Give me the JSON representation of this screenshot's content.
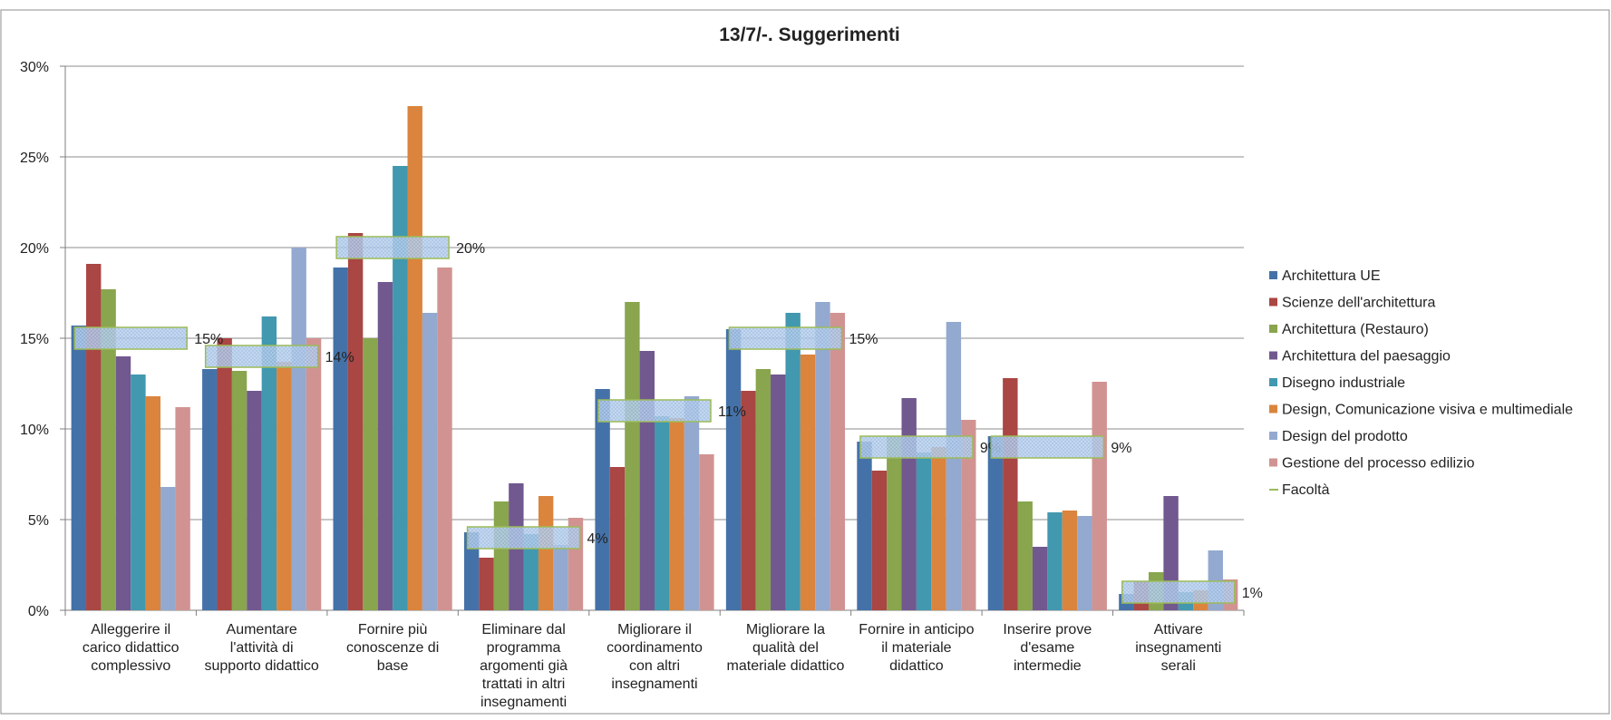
{
  "chart_data": {
    "type": "bar",
    "title": "13/7/-. Suggerimenti",
    "xlabel": "",
    "ylabel": "",
    "ylim": [
      0,
      30
    ],
    "yticks": [
      "0%",
      "5%",
      "10%",
      "15%",
      "20%",
      "25%",
      "30%"
    ],
    "grid": true,
    "legend_position": "right",
    "categories": [
      [
        "Alleggerire il",
        "carico didattico",
        "complessivo"
      ],
      [
        "Aumentare",
        "l'attività di",
        "supporto didattico"
      ],
      [
        "Fornire più",
        "conoscenze di",
        "base"
      ],
      [
        "Eliminare dal",
        "programma",
        "argomenti già",
        "trattati in altri",
        "insegnamenti"
      ],
      [
        "Migliorare il",
        "coordinamento",
        "con altri",
        "insegnamenti"
      ],
      [
        "Migliorare la",
        "qualità del",
        "materiale didattico"
      ],
      [
        "Fornire in anticipo",
        "il materiale",
        "didattico"
      ],
      [
        "Inserire prove",
        "d'esame",
        "intermedie"
      ],
      [
        "Attivare",
        "insegnamenti",
        "serali"
      ]
    ],
    "series": [
      {
        "name": "Architettura UE",
        "color": "#4472A8",
        "values": [
          15.7,
          13.3,
          18.9,
          4.3,
          12.2,
          15.5,
          9.3,
          9.6,
          0.9
        ]
      },
      {
        "name": "Scienze dell'architettura",
        "color": "#AA4643",
        "values": [
          19.1,
          15.0,
          20.8,
          2.9,
          7.9,
          12.1,
          7.7,
          12.8,
          1.6
        ]
      },
      {
        "name": "Architettura (Restauro)",
        "color": "#89A54E",
        "values": [
          17.7,
          13.2,
          15.0,
          6.0,
          17.0,
          13.3,
          9.6,
          6.0,
          2.1
        ]
      },
      {
        "name": "Architettura del paesaggio",
        "color": "#71588F",
        "values": [
          14.0,
          12.1,
          18.1,
          7.0,
          14.3,
          13.0,
          11.7,
          3.5,
          6.3
        ]
      },
      {
        "name": "Disegno industriale",
        "color": "#4198AF",
        "values": [
          13.0,
          16.2,
          24.5,
          4.2,
          10.7,
          16.4,
          8.7,
          5.4,
          1.0
        ]
      },
      {
        "name": "Design, Comunicazione visiva e multimediale",
        "color": "#DB843D",
        "values": [
          11.8,
          13.7,
          27.8,
          6.3,
          10.6,
          14.1,
          9.0,
          5.5,
          1.1
        ]
      },
      {
        "name": "Design del prodotto",
        "color": "#93A9CF",
        "values": [
          6.8,
          20.0,
          16.4,
          3.6,
          11.8,
          17.0,
          15.9,
          5.2,
          3.3
        ]
      },
      {
        "name": "Gestione del processo edilizio",
        "color": "#D19392",
        "values": [
          11.2,
          15.0,
          18.9,
          5.1,
          8.6,
          16.4,
          10.5,
          12.6,
          1.7
        ]
      }
    ],
    "facolta": {
      "name": "Facoltà",
      "color": "#9BBB59",
      "values": [
        15,
        14,
        20,
        4,
        11,
        15,
        9,
        9,
        1
      ],
      "labels": [
        "15%",
        "14%",
        "20%",
        "4%",
        "11%",
        "15%",
        "9%",
        "9%",
        "1%"
      ]
    }
  }
}
